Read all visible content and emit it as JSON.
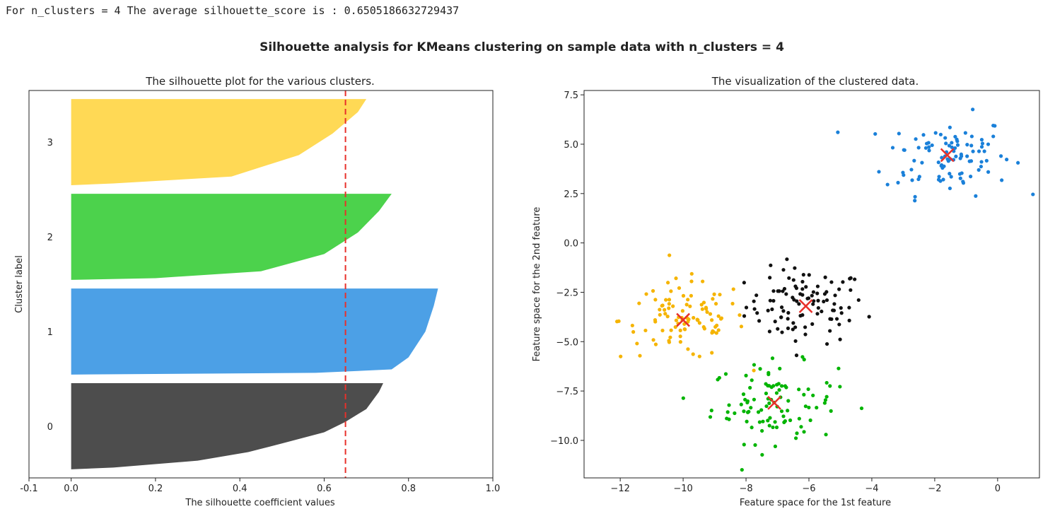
{
  "output_line": "For n_clusters = 4 The average silhouette_score is : 0.6505186632729437",
  "suptitle": "Silhouette analysis for KMeans clustering on sample data with n_clusters = 4",
  "chart_data": [
    {
      "type": "area",
      "title": "The silhouette plot for the various clusters.",
      "xlabel": "The silhouette coefficient values",
      "ylabel": "Cluster label",
      "xlim": [
        -0.1,
        1.0
      ],
      "ylim": [
        0,
        450
      ],
      "xticks": [
        "-0.1",
        "0.0",
        "0.2",
        "0.4",
        "0.6",
        "0.8",
        "1.0"
      ],
      "xtick_values": [
        -0.1,
        0,
        0.2,
        0.4,
        0.6,
        0.8,
        1.0
      ],
      "average_score": 0.6505186632729437,
      "average_line_color": "#e8302a",
      "clusters": [
        {
          "label": "0",
          "y_range": [
            10,
            110
          ],
          "color": "#4d4d4d",
          "profile": [
            [
              0,
              0.0
            ],
            [
              0.02,
              0.1
            ],
            [
              0.1,
              0.3
            ],
            [
              0.2,
              0.42
            ],
            [
              0.3,
              0.5
            ],
            [
              0.43,
              0.6
            ],
            [
              0.55,
              0.65
            ],
            [
              0.7,
              0.7
            ],
            [
              0.9,
              0.73
            ],
            [
              1,
              0.74
            ]
          ]
        },
        {
          "label": "1",
          "y_range": [
            120,
            220
          ],
          "color": "#4ca0e6",
          "profile": [
            [
              0,
              0.0
            ],
            [
              0.02,
              0.58
            ],
            [
              0.06,
              0.76
            ],
            [
              0.2,
              0.8
            ],
            [
              0.5,
              0.84
            ],
            [
              0.8,
              0.86
            ],
            [
              1,
              0.87
            ]
          ]
        },
        {
          "label": "2",
          "y_range": [
            230,
            330
          ],
          "color": "#4cd24c",
          "profile": [
            [
              0,
              0.0
            ],
            [
              0.02,
              0.2
            ],
            [
              0.1,
              0.45
            ],
            [
              0.3,
              0.6
            ],
            [
              0.55,
              0.68
            ],
            [
              0.8,
              0.73
            ],
            [
              1,
              0.76
            ]
          ]
        },
        {
          "label": "3",
          "y_range": [
            340,
            440
          ],
          "color": "#ffd955",
          "profile": [
            [
              0,
              0.0
            ],
            [
              0.02,
              0.1
            ],
            [
              0.1,
              0.38
            ],
            [
              0.35,
              0.54
            ],
            [
              0.6,
              0.62
            ],
            [
              0.85,
              0.68
            ],
            [
              1,
              0.7
            ]
          ]
        }
      ]
    },
    {
      "type": "scatter",
      "title": "The visualization of the clustered data.",
      "xlabel": "Feature space for the 1st feature",
      "ylabel": "Feature space for the 2nd feature",
      "xlim": [
        -13.15,
        1.33
      ],
      "ylim": [
        -11.9,
        7.72
      ],
      "xticks": [
        "−12",
        "−10",
        "−8",
        "−6",
        "−4",
        "−2",
        "0"
      ],
      "xtick_values": [
        -12,
        -10,
        -8,
        -6,
        -4,
        -2,
        0
      ],
      "yticks": [
        "7.5",
        "5.0",
        "2.5",
        "0.0",
        "−2.5",
        "−5.0",
        "−7.5",
        "−10.0"
      ],
      "ytick_values": [
        7.5,
        5,
        2.5,
        0,
        -2.5,
        -5,
        -7.5,
        -10
      ],
      "center_marker_color": "#e8302a",
      "clusters": [
        {
          "label": "0",
          "color": "#111111",
          "center": [
            -6.1,
            -3.2
          ],
          "std": 0.95,
          "count": 100
        },
        {
          "label": "1",
          "color": "#1a80d9",
          "center": [
            -1.6,
            4.45
          ],
          "std": 1.0,
          "count": 100
        },
        {
          "label": "2",
          "color": "#00b400",
          "center": [
            -7.1,
            -8.1
          ],
          "std": 1.0,
          "count": 100
        },
        {
          "label": "3",
          "color": "#f5b400",
          "center": [
            -10.0,
            -3.9
          ],
          "std": 1.0,
          "count": 100
        }
      ]
    }
  ]
}
